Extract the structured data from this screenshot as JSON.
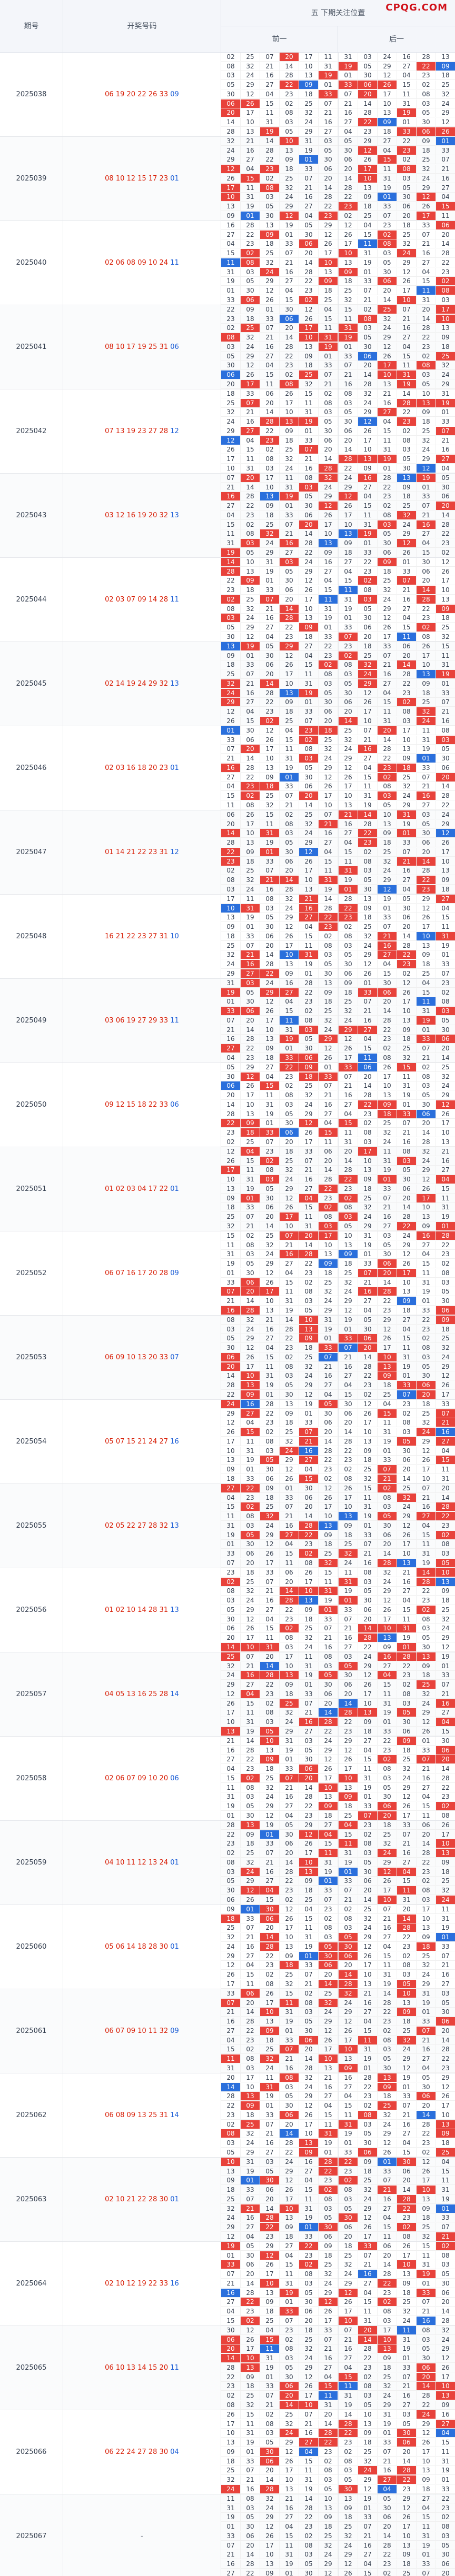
{
  "header": {
    "period_label": "期号",
    "numbers_label": "开奖号码",
    "title": "五 下期关注位置",
    "left_label": "前一",
    "right_label": "后一",
    "logo": "CPQG.COM"
  },
  "rows": [
    {
      "period": "2025038",
      "reds": [
        "06",
        "19",
        "20",
        "22",
        "26",
        "33"
      ],
      "blue": "09"
    },
    {
      "period": "2025039",
      "reds": [
        "08",
        "10",
        "12",
        "15",
        "17",
        "23"
      ],
      "blue": "01"
    },
    {
      "period": "2025040",
      "reds": [
        "02",
        "06",
        "08",
        "09",
        "10",
        "24"
      ],
      "blue": "11"
    },
    {
      "period": "2025041",
      "reds": [
        "08",
        "10",
        "17",
        "19",
        "25",
        "31"
      ],
      "blue": "06"
    },
    {
      "period": "2025042",
      "reds": [
        "07",
        "13",
        "19",
        "23",
        "27",
        "28"
      ],
      "blue": "12"
    },
    {
      "period": "2025043",
      "reds": [
        "03",
        "12",
        "16",
        "19",
        "20",
        "32"
      ],
      "blue": "13"
    },
    {
      "period": "2025044",
      "reds": [
        "02",
        "03",
        "07",
        "09",
        "14",
        "28"
      ],
      "blue": "11"
    },
    {
      "period": "2025045",
      "reds": [
        "02",
        "14",
        "19",
        "24",
        "29",
        "32"
      ],
      "blue": "13"
    },
    {
      "period": "2025046",
      "reds": [
        "02",
        "03",
        "16",
        "18",
        "20",
        "23"
      ],
      "blue": "01"
    },
    {
      "period": "2025047",
      "reds": [
        "01",
        "14",
        "21",
        "22",
        "23",
        "31"
      ],
      "blue": "12"
    },
    {
      "period": "2025048",
      "reds": [
        "16",
        "21",
        "22",
        "23",
        "27",
        "31"
      ],
      "blue": "10"
    },
    {
      "period": "2025049",
      "reds": [
        "03",
        "06",
        "19",
        "27",
        "29",
        "33"
      ],
      "blue": "11"
    },
    {
      "period": "2025050",
      "reds": [
        "09",
        "12",
        "15",
        "18",
        "22",
        "33"
      ],
      "blue": "06"
    },
    {
      "period": "2025051",
      "reds": [
        "01",
        "02",
        "03",
        "04",
        "17",
        "22"
      ],
      "blue": "01"
    },
    {
      "period": "2025052",
      "reds": [
        "06",
        "07",
        "16",
        "17",
        "20",
        "28"
      ],
      "blue": "09"
    },
    {
      "period": "2025053",
      "reds": [
        "06",
        "09",
        "10",
        "13",
        "20",
        "33"
      ],
      "blue": "07"
    },
    {
      "period": "2025054",
      "reds": [
        "05",
        "07",
        "15",
        "21",
        "24",
        "27"
      ],
      "blue": "16"
    },
    {
      "period": "2025055",
      "reds": [
        "02",
        "05",
        "22",
        "27",
        "28",
        "32"
      ],
      "blue": "13"
    },
    {
      "period": "2025056",
      "reds": [
        "01",
        "02",
        "10",
        "14",
        "28",
        "31"
      ],
      "blue": "13"
    },
    {
      "period": "2025057",
      "reds": [
        "04",
        "05",
        "13",
        "16",
        "25",
        "28"
      ],
      "blue": "14"
    },
    {
      "period": "2025058",
      "reds": [
        "02",
        "06",
        "07",
        "09",
        "10",
        "20"
      ],
      "blue": "06"
    },
    {
      "period": "2025059",
      "reds": [
        "04",
        "10",
        "11",
        "12",
        "13",
        "24"
      ],
      "blue": "01"
    },
    {
      "period": "2025060",
      "reds": [
        "05",
        "06",
        "14",
        "18",
        "28",
        "30"
      ],
      "blue": "01"
    },
    {
      "period": "2025061",
      "reds": [
        "06",
        "07",
        "09",
        "10",
        "11",
        "32"
      ],
      "blue": "09"
    },
    {
      "period": "2025062",
      "reds": [
        "06",
        "08",
        "09",
        "13",
        "25",
        "31"
      ],
      "blue": "14"
    },
    {
      "period": "2025063",
      "reds": [
        "02",
        "10",
        "21",
        "22",
        "28",
        "30"
      ],
      "blue": "01"
    },
    {
      "period": "2025064",
      "reds": [
        "02",
        "10",
        "12",
        "19",
        "22",
        "33"
      ],
      "blue": "16"
    },
    {
      "period": "2025065",
      "reds": [
        "06",
        "10",
        "13",
        "14",
        "15",
        "20"
      ],
      "blue": "11"
    },
    {
      "period": "2025066",
      "reds": [
        "06",
        "22",
        "24",
        "27",
        "28",
        "30"
      ],
      "blue": "04"
    },
    {
      "period": "2025067",
      "reds": [],
      "blue": "",
      "pending": "-"
    }
  ],
  "grid_values": [
    "02",
    "25",
    "07",
    "20",
    "17",
    "11",
    "08",
    "32",
    "21",
    "14",
    "10",
    "31",
    "03",
    "24",
    "16",
    "28",
    "13",
    "19",
    "05",
    "29",
    "27",
    "22",
    "09",
    "01",
    "30",
    "12",
    "04",
    "23",
    "18",
    "33",
    "06",
    "26",
    "15"
  ]
}
